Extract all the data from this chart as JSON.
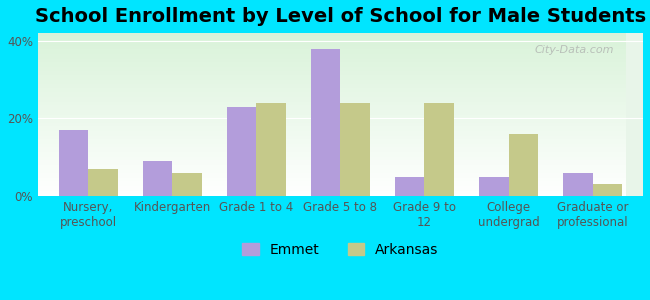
{
  "title": "School Enrollment by Level of School for Male Students",
  "categories": [
    "Nursery,\npreschool",
    "Kindergarten",
    "Grade 1 to 4",
    "Grade 5 to 8",
    "Grade 9 to\n12",
    "College\nundergrad",
    "Graduate or\nprofessional"
  ],
  "emmet": [
    17,
    9,
    23,
    38,
    5,
    5,
    6
  ],
  "arkansas": [
    7,
    6,
    24,
    24,
    24,
    16,
    3
  ],
  "emmet_color": "#b39ddb",
  "arkansas_color": "#c5c98a",
  "background_outer": "#00e5ff",
  "background_inner": "#f0f7e6",
  "ylim": [
    0,
    42
  ],
  "yticks": [
    0,
    20,
    40
  ],
  "ytick_labels": [
    "0%",
    "20%",
    "40%"
  ],
  "ylabel": "",
  "xlabel": "",
  "legend_labels": [
    "Emmet",
    "Arkansas"
  ],
  "watermark": "City-Data.com",
  "title_fontsize": 14,
  "tick_fontsize": 8.5,
  "legend_fontsize": 10
}
